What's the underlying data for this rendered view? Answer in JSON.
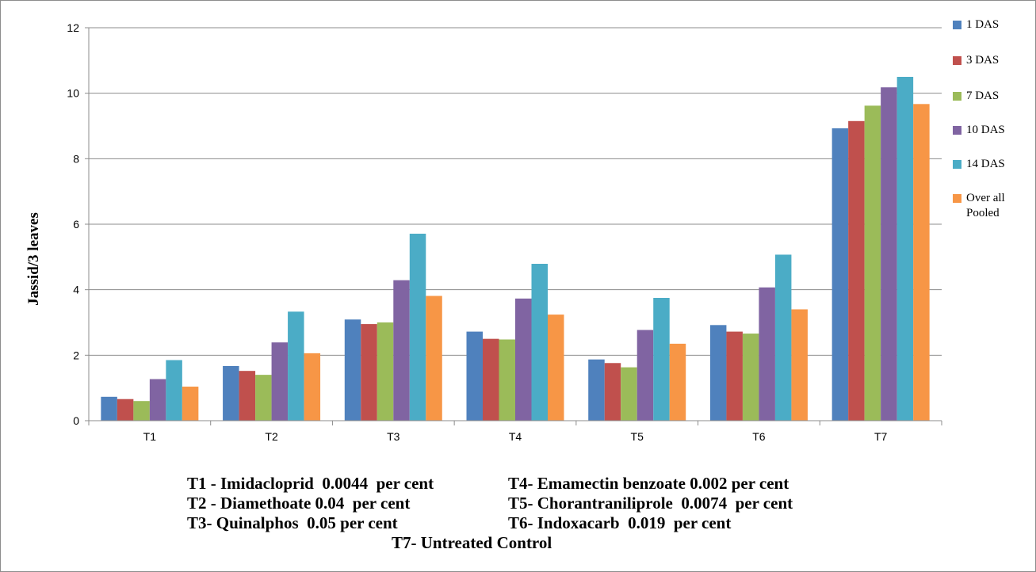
{
  "chart_data": {
    "type": "bar",
    "title": "",
    "xlabel": "",
    "ylabel": "Jassid/3 leaves",
    "ylim": [
      0,
      12
    ],
    "yticks": [
      "0",
      "2",
      "4",
      "6",
      "8",
      "10",
      "12"
    ],
    "grid": true,
    "legend_position": "right",
    "categories": [
      "T1",
      "T2",
      "T3",
      "T4",
      "T5",
      "T6",
      "T7"
    ],
    "series": [
      {
        "name": "1 DAS",
        "color": "#4f81bd",
        "values": [
          0.73,
          1.67,
          3.09,
          2.72,
          1.87,
          2.92,
          8.93
        ]
      },
      {
        "name": "3 DAS",
        "color": "#c0504d",
        "values": [
          0.66,
          1.52,
          2.95,
          2.5,
          1.76,
          2.72,
          9.15
        ]
      },
      {
        "name": "7 DAS",
        "color": "#9bbb59",
        "values": [
          0.6,
          1.4,
          3.0,
          2.48,
          1.63,
          2.66,
          9.62
        ]
      },
      {
        "name": "10 DAS",
        "color": "#8064a2",
        "values": [
          1.27,
          2.39,
          4.29,
          3.73,
          2.77,
          4.07,
          10.18
        ]
      },
      {
        "name": "14 DAS",
        "color": "#4bacc6",
        "values": [
          1.85,
          3.33,
          5.71,
          4.79,
          3.75,
          5.07,
          10.5
        ]
      },
      {
        "name": "Over all Pooled",
        "color": "#f79646",
        "values": [
          1.04,
          2.06,
          3.81,
          3.24,
          2.35,
          3.4,
          9.67
        ]
      }
    ]
  },
  "legend_lines": {
    "s0": [
      "1 DAS"
    ],
    "s1": [
      "3 DAS"
    ],
    "s2": [
      "7 DAS"
    ],
    "s3": [
      "10 DAS"
    ],
    "s4": [
      "14 DAS"
    ],
    "s5": [
      "Over all",
      "Pooled"
    ]
  },
  "treatment_notes": {
    "t1": "T1 - Imidacloprid  0.0044  per cent",
    "t4": "T4- Emamectin benzoate 0.002 per cent",
    "t2": "T2 - Diamethoate 0.04  per cent",
    "t5": "T5- Chorantraniliprole  0.0074  per cent",
    "t3": "T3- Quinalphos  0.05 per cent",
    "t6": "T6- Indoxacarb  0.019  per cent",
    "t7": "T7- Untreated Control"
  }
}
